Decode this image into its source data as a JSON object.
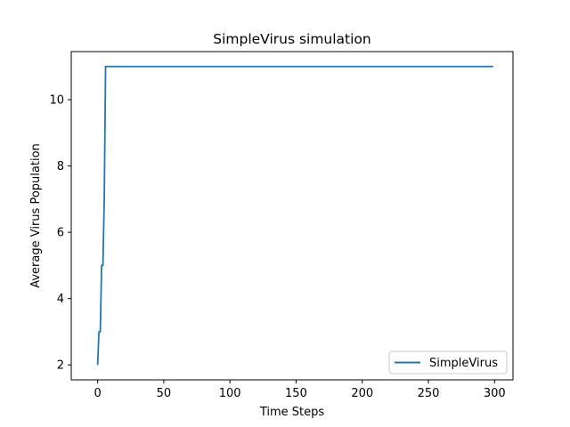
{
  "chart_data": {
    "type": "line",
    "title": "SimpleVirus simulation",
    "xlabel": "Time Steps",
    "ylabel": "Average Virus Population",
    "xlim": [
      -19.95,
      313.95
    ],
    "ylim": [
      1.55,
      11.45
    ],
    "xticks": [
      0,
      50,
      100,
      150,
      200,
      250,
      300
    ],
    "yticks": [
      2,
      4,
      6,
      8,
      10
    ],
    "legend_position": "lower-right",
    "grid": false,
    "series": [
      {
        "name": "SimpleVirus",
        "color": "#1f77b4",
        "x": [
          0,
          1,
          2,
          3,
          4,
          5,
          6,
          7,
          299
        ],
        "y": [
          2,
          3,
          3,
          5,
          5,
          7,
          11,
          11,
          11
        ]
      }
    ]
  }
}
